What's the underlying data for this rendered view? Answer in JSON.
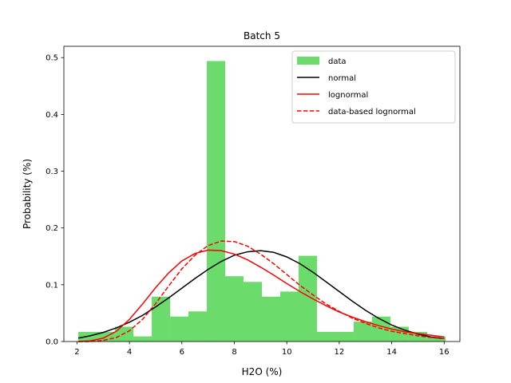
{
  "chart_data": {
    "type": "bar",
    "title": "Batch 5",
    "xlabel": "H2O (%)",
    "ylabel": "Probability (%)",
    "xlim": [
      1.5,
      16.6
    ],
    "ylim": [
      0,
      0.52
    ],
    "xticks": [
      2,
      4,
      6,
      8,
      10,
      12,
      14,
      16
    ],
    "yticks": [
      0.0,
      0.1,
      0.2,
      0.3,
      0.4,
      0.5
    ],
    "grid": false,
    "legend_position": "top-right",
    "histogram": {
      "name": "data",
      "color": "#6bdc6b",
      "bin_edges": [
        2.05,
        2.75,
        3.45,
        4.15,
        4.85,
        5.55,
        6.25,
        6.95,
        7.65,
        8.35,
        9.05,
        9.75,
        10.45,
        11.15,
        11.85,
        12.55,
        13.25,
        13.95,
        14.65,
        15.35,
        16.05
      ],
      "values": [
        0.017,
        0.017,
        0.026,
        0.009,
        0.079,
        0.044,
        0.053,
        0.494,
        0.115,
        0.105,
        0.079,
        0.088,
        0.151,
        0.017,
        0.017,
        0.035,
        0.044,
        0.026,
        0.017,
        0.009
      ]
    },
    "series": [
      {
        "name": "normal",
        "color": "#000000",
        "dash": "solid",
        "x": [
          2.05,
          2.5,
          3,
          3.5,
          4,
          4.5,
          5,
          5.5,
          6,
          6.5,
          7,
          7.5,
          8,
          8.5,
          9,
          9.5,
          10,
          10.5,
          11,
          11.5,
          12,
          12.5,
          13,
          13.5,
          14,
          14.5,
          15,
          15.5,
          16
        ],
        "y": [
          0.006,
          0.01,
          0.016,
          0.024,
          0.034,
          0.046,
          0.061,
          0.077,
          0.094,
          0.111,
          0.127,
          0.141,
          0.152,
          0.158,
          0.16,
          0.157,
          0.149,
          0.137,
          0.122,
          0.105,
          0.088,
          0.071,
          0.055,
          0.041,
          0.029,
          0.02,
          0.013,
          0.008,
          0.005
        ]
      },
      {
        "name": "lognormal",
        "color": "#ff0000",
        "dash": "solid",
        "x": [
          2.05,
          2.5,
          3,
          3.5,
          4,
          4.5,
          5,
          5.5,
          6,
          6.5,
          7,
          7.5,
          8,
          8.5,
          9,
          9.5,
          10,
          10.5,
          11,
          11.5,
          12,
          12.5,
          13,
          13.5,
          14,
          14.5,
          15,
          15.5,
          16
        ],
        "y": [
          0.0,
          0.001,
          0.006,
          0.018,
          0.039,
          0.066,
          0.095,
          0.121,
          0.142,
          0.155,
          0.161,
          0.16,
          0.154,
          0.144,
          0.131,
          0.117,
          0.102,
          0.088,
          0.075,
          0.063,
          0.052,
          0.043,
          0.035,
          0.028,
          0.022,
          0.017,
          0.014,
          0.011,
          0.008
        ]
      },
      {
        "name": "data-based lognormal",
        "color": "#ff0000",
        "dash": "dashed",
        "x": [
          2.05,
          2.5,
          3,
          3.5,
          4,
          4.5,
          5,
          5.5,
          6,
          6.5,
          7,
          7.5,
          8,
          8.5,
          9,
          9.5,
          10,
          10.5,
          11,
          11.5,
          12,
          12.5,
          13,
          13.5,
          14,
          14.5,
          15,
          15.5,
          16
        ],
        "y": [
          0.0,
          0.0,
          0.002,
          0.007,
          0.019,
          0.039,
          0.067,
          0.098,
          0.128,
          0.152,
          0.169,
          0.177,
          0.176,
          0.168,
          0.154,
          0.137,
          0.118,
          0.099,
          0.082,
          0.066,
          0.053,
          0.041,
          0.032,
          0.024,
          0.018,
          0.014,
          0.01,
          0.007,
          0.005
        ]
      }
    ]
  }
}
